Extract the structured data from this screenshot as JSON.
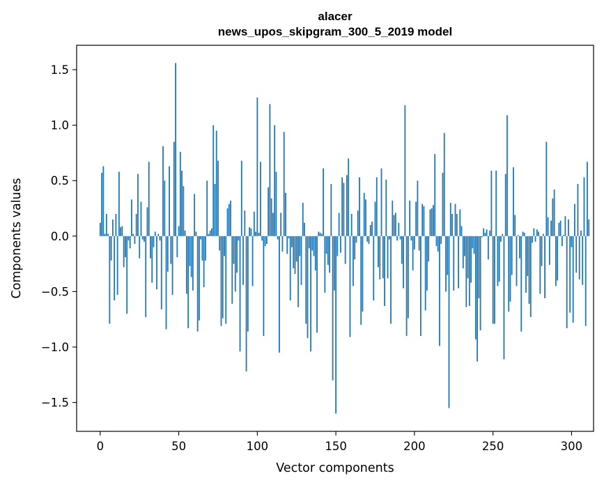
{
  "chart_data": {
    "type": "bar",
    "title_line1": "alacer",
    "title_line2": "news_upos_skipgram_300_5_2019 model",
    "xlabel": "Vector components",
    "ylabel": "Components values",
    "xlim": [
      -15,
      314
    ],
    "ylim": [
      -1.76,
      1.72
    ],
    "x_ticks": [
      0,
      50,
      100,
      150,
      200,
      250,
      300
    ],
    "y_ticks": [
      1.5,
      1.0,
      0.5,
      0.0,
      -0.5,
      -1.0,
      -1.5
    ],
    "y_tick_labels": [
      "1.5",
      "1.0",
      "0.5",
      "0.0",
      "−0.5",
      "−1.0",
      "−1.5"
    ],
    "bar_color": "#1f77b4",
    "values": [
      0.12,
      0.57,
      0.63,
      0.02,
      0.2,
      0.02,
      -0.79,
      -0.22,
      0.15,
      -0.58,
      0.2,
      -0.53,
      0.58,
      0.08,
      0.09,
      -0.28,
      -0.19,
      -0.7,
      -0.04,
      -0.11,
      0.33,
      0.02,
      -0.07,
      0.2,
      0.56,
      -0.2,
      0.31,
      -0.03,
      -0.05,
      -0.73,
      0.26,
      0.67,
      -0.2,
      -0.42,
      -0.1,
      0.04,
      -0.48,
      0.02,
      -0.04,
      -0.66,
      0.81,
      0.5,
      -0.84,
      -0.32,
      0.63,
      -0.25,
      -0.53,
      0.85,
      1.56,
      -0.19,
      0.09,
      0.76,
      0.59,
      0.45,
      0.05,
      -0.52,
      -0.83,
      -0.27,
      -0.37,
      -0.49,
      0.38,
      0.04,
      -0.86,
      -0.76,
      -0.03,
      -0.22,
      -0.46,
      -0.22,
      0.5,
      0.02,
      0.05,
      0.07,
      1.0,
      0.47,
      0.95,
      0.68,
      -0.13,
      -0.81,
      -0.74,
      -0.18,
      -0.79,
      0.25,
      0.29,
      0.32,
      -0.61,
      -0.25,
      -0.5,
      -0.33,
      -0.04,
      -1.04,
      0.68,
      -0.44,
      0.23,
      -1.22,
      -0.86,
      0.08,
      0.07,
      -0.45,
      0.22,
      0.04,
      1.25,
      0.03,
      0.67,
      -0.04,
      -0.9,
      -0.09,
      -0.07,
      0.44,
      1.19,
      0.34,
      0.21,
      1.0,
      0.58,
      -0.03,
      -1.05,
      0.21,
      -0.14,
      0.94,
      0.39,
      -0.16,
      -0.02,
      -0.58,
      -0.1,
      -0.29,
      -0.34,
      -0.23,
      -0.64,
      -0.18,
      -0.44,
      0.3,
      0.12,
      -0.79,
      -0.92,
      -0.11,
      -1.04,
      -0.13,
      -0.18,
      -0.31,
      -0.87,
      0.04,
      0.03,
      0.02,
      0.61,
      -0.51,
      -0.16,
      -0.26,
      -0.33,
      0.47,
      -1.3,
      -0.49,
      -1.6,
      -0.18,
      0.21,
      -0.15,
      0.53,
      0.48,
      -0.25,
      0.55,
      0.7,
      -0.91,
      0.2,
      -0.45,
      -0.21,
      -0.06,
      0.23,
      0.53,
      -0.8,
      -0.68,
      0.39,
      0.33,
      -0.05,
      -0.07,
      0.1,
      0.13,
      -0.58,
      0.31,
      0.53,
      -0.28,
      -0.39,
      0.61,
      -0.38,
      -0.63,
      0.51,
      -0.38,
      -0.03,
      -0.79,
      0.32,
      0.19,
      0.21,
      -0.04,
      0.12,
      -0.03,
      -0.25,
      -0.47,
      1.18,
      -0.9,
      -0.74,
      0.32,
      -0.04,
      -0.31,
      -0.12,
      0.31,
      0.5,
      -0.13,
      -0.9,
      0.29,
      0.27,
      -0.67,
      -0.49,
      -0.23,
      0.24,
      0.25,
      0.28,
      0.74,
      -0.09,
      -0.14,
      -0.99,
      -0.07,
      0.57,
      0.93,
      -0.5,
      -0.35,
      -1.55,
      0.3,
      0.2,
      -0.49,
      0.29,
      0.2,
      -0.47,
      0.24,
      0.09,
      -0.29,
      -0.18,
      -0.64,
      -0.38,
      -0.63,
      -0.42,
      -0.11,
      -0.16,
      -0.93,
      -1.13,
      -0.56,
      -0.85,
      -0.01,
      0.07,
      0.03,
      0.06,
      -0.21,
      0.05,
      0.59,
      -0.79,
      -0.79,
      0.59,
      -0.45,
      -0.41,
      -0.05,
      0.02,
      -1.11,
      0.56,
      1.09,
      -0.68,
      -0.59,
      -0.35,
      0.62,
      0.19,
      -0.45,
      0.01,
      -0.2,
      -0.86,
      0.04,
      0.03,
      -0.51,
      -0.36,
      -0.61,
      -0.73,
      -0.06,
      0.07,
      -0.05,
      0.06,
      0.04,
      -0.52,
      -0.27,
      0.02,
      -0.56,
      0.85,
      0.17,
      -0.26,
      0.14,
      0.34,
      0.42,
      -0.45,
      -0.4,
      0.12,
      0.14,
      -0.09,
      0.01,
      0.18,
      -0.83,
      0.15,
      -0.69,
      -0.1,
      -0.78,
      0.29,
      -0.33,
      0.47,
      -0.39,
      0.05,
      -0.44,
      0.53,
      -0.81,
      0.67,
      0.15
    ]
  }
}
